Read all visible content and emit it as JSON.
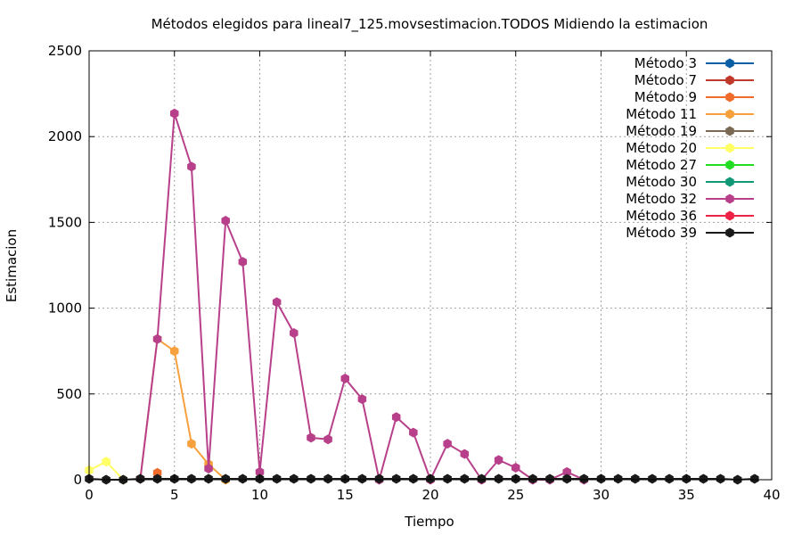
{
  "chart_data": {
    "type": "line",
    "title": "Métodos elegidos para lineal7_125.movsestimacion.TODOS Midiendo la estimacion",
    "xlabel": "Tiempo",
    "ylabel": "Estimacion",
    "xlim": [
      0,
      40
    ],
    "ylim": [
      0,
      2500
    ],
    "xticks": [
      0,
      5,
      10,
      15,
      20,
      25,
      30,
      35,
      40
    ],
    "yticks": [
      0,
      500,
      1000,
      1500,
      2000,
      2500
    ],
    "grid": true,
    "legend_position": "top-right",
    "series": [
      {
        "name": "Método 3",
        "color": "#0b5fa5",
        "points": []
      },
      {
        "name": "Método 7",
        "color": "#c0392b",
        "points": []
      },
      {
        "name": "Método 9",
        "color": "#f06c2a",
        "points": [
          [
            4,
            40
          ]
        ]
      },
      {
        "name": "Método 11",
        "color": "#f7a13e",
        "points": [
          [
            3,
            5
          ],
          [
            4,
            820
          ],
          [
            5,
            750
          ],
          [
            6,
            210
          ],
          [
            7,
            90
          ],
          [
            8,
            0
          ]
        ]
      },
      {
        "name": "Método 19",
        "color": "#7a6a53",
        "points": []
      },
      {
        "name": "Método 20",
        "color": "#ffff66",
        "points": [
          [
            0,
            55
          ],
          [
            1,
            105
          ],
          [
            2,
            0
          ]
        ]
      },
      {
        "name": "Método 27",
        "color": "#22dd22",
        "points": []
      },
      {
        "name": "Método 30",
        "color": "#119977",
        "points": []
      },
      {
        "name": "Método 32",
        "color": "#b8408a",
        "points": [
          [
            3,
            5
          ],
          [
            4,
            820
          ],
          [
            5,
            2135
          ],
          [
            6,
            1825
          ],
          [
            7,
            65
          ],
          [
            8,
            1510
          ],
          [
            9,
            1270
          ],
          [
            10,
            45
          ],
          [
            11,
            1035
          ],
          [
            12,
            855
          ],
          [
            13,
            245
          ],
          [
            14,
            235
          ],
          [
            15,
            590
          ],
          [
            16,
            470
          ],
          [
            17,
            0
          ],
          [
            18,
            365
          ],
          [
            19,
            275
          ],
          [
            20,
            0
          ],
          [
            21,
            210
          ],
          [
            22,
            150
          ],
          [
            23,
            0
          ],
          [
            24,
            115
          ],
          [
            25,
            70
          ],
          [
            26,
            0
          ],
          [
            27,
            0
          ],
          [
            28,
            45
          ],
          [
            29,
            0
          ]
        ]
      },
      {
        "name": "Método 36",
        "color": "#ee2244",
        "points": []
      },
      {
        "name": "Método 39",
        "color": "#1a1a1a",
        "points": [
          [
            0,
            5
          ],
          [
            1,
            0
          ],
          [
            2,
            0
          ],
          [
            3,
            5
          ],
          [
            4,
            5
          ],
          [
            5,
            5
          ],
          [
            6,
            5
          ],
          [
            7,
            5
          ],
          [
            8,
            5
          ],
          [
            9,
            5
          ],
          [
            10,
            5
          ],
          [
            11,
            5
          ],
          [
            12,
            5
          ],
          [
            13,
            5
          ],
          [
            14,
            5
          ],
          [
            15,
            5
          ],
          [
            16,
            5
          ],
          [
            17,
            5
          ],
          [
            18,
            5
          ],
          [
            19,
            5
          ],
          [
            20,
            5
          ],
          [
            21,
            5
          ],
          [
            22,
            5
          ],
          [
            23,
            5
          ],
          [
            24,
            5
          ],
          [
            25,
            5
          ],
          [
            26,
            5
          ],
          [
            27,
            5
          ],
          [
            28,
            5
          ],
          [
            29,
            5
          ],
          [
            30,
            5
          ],
          [
            31,
            5
          ],
          [
            32,
            5
          ],
          [
            33,
            5
          ],
          [
            34,
            5
          ],
          [
            35,
            5
          ],
          [
            36,
            5
          ],
          [
            37,
            5
          ],
          [
            38,
            0
          ],
          [
            39,
            5
          ]
        ]
      }
    ]
  }
}
